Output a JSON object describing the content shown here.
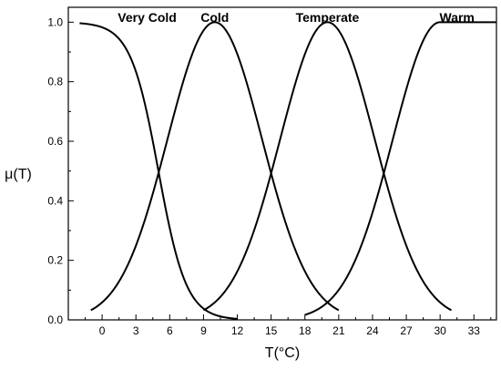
{
  "chart_data": {
    "type": "line",
    "title": "",
    "xlabel": "T(°C)",
    "ylabel": "μ(T)",
    "xlim": [
      -3,
      35
    ],
    "ylim": [
      0,
      1.05
    ],
    "x_ticks": [
      0,
      3,
      6,
      9,
      12,
      15,
      18,
      21,
      24,
      27,
      30,
      33
    ],
    "y_ticks": [
      0.0,
      0.2,
      0.4,
      0.6,
      0.8,
      1.0
    ],
    "y_tick_labels": [
      "0.0",
      "0.2",
      "0.4",
      "0.6",
      "0.8",
      "1.0"
    ],
    "x_minor_step": 1.5,
    "y_minor_step": 0.1,
    "grid": false,
    "line_color": "#000000",
    "series": [
      {
        "name": "Very Cold",
        "label_x": 4.0,
        "shape": "z",
        "center": 5,
        "spread": 2.6,
        "points": [
          [
            -2,
            1.0
          ],
          [
            0,
            0.99
          ],
          [
            2,
            0.93
          ],
          [
            3,
            0.82
          ],
          [
            4,
            0.64
          ],
          [
            5,
            0.46
          ],
          [
            6,
            0.28
          ],
          [
            7,
            0.14
          ],
          [
            8,
            0.06
          ],
          [
            9,
            0.02
          ],
          [
            10,
            0.005
          ],
          [
            12,
            0.0
          ]
        ]
      },
      {
        "name": "Cold",
        "label_x": 10.0,
        "shape": "gauss",
        "center": 10,
        "sigma": 4.2,
        "points": [
          [
            -1,
            0.01
          ],
          [
            2,
            0.16
          ],
          [
            4,
            0.38
          ],
          [
            6,
            0.66
          ],
          [
            8,
            0.9
          ],
          [
            10,
            1.0
          ],
          [
            12,
            0.9
          ],
          [
            14,
            0.66
          ],
          [
            16,
            0.38
          ],
          [
            18,
            0.16
          ],
          [
            20,
            0.04
          ],
          [
            21,
            0.01
          ]
        ]
      },
      {
        "name": "Temperate",
        "label_x": 20.0,
        "shape": "gauss",
        "center": 20,
        "sigma": 4.2,
        "points": [
          [
            9,
            0.01
          ],
          [
            12,
            0.16
          ],
          [
            14,
            0.38
          ],
          [
            16,
            0.66
          ],
          [
            18,
            0.9
          ],
          [
            20,
            1.0
          ],
          [
            22,
            0.9
          ],
          [
            24,
            0.66
          ],
          [
            26,
            0.38
          ],
          [
            28,
            0.16
          ],
          [
            30,
            0.04
          ],
          [
            31,
            0.01
          ]
        ]
      },
      {
        "name": "Warm",
        "label_x": 31.5,
        "shape": "s",
        "center": 25,
        "sigma": 4.2,
        "points": [
          [
            18,
            0.06
          ],
          [
            20,
            0.16
          ],
          [
            22,
            0.38
          ],
          [
            24,
            0.66
          ],
          [
            25,
            0.8
          ],
          [
            26,
            0.9
          ],
          [
            28,
            0.99
          ],
          [
            30,
            1.0
          ],
          [
            35,
            1.0
          ]
        ]
      }
    ]
  }
}
